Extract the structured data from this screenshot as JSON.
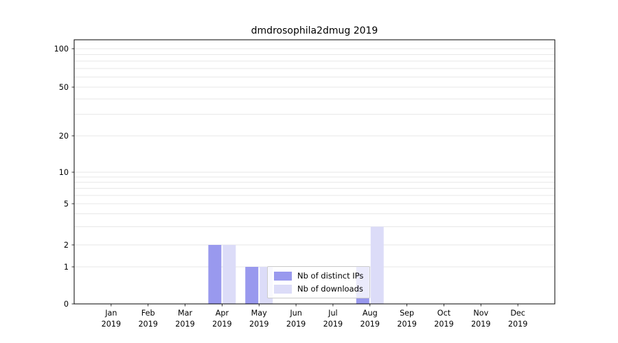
{
  "title": "dmdrosophila2dmug 2019",
  "chart_data": {
    "type": "bar",
    "title": "dmdrosophila2dmug 2019",
    "categories": [
      "Jan 2019",
      "Feb 2019",
      "Mar 2019",
      "Apr 2019",
      "May 2019",
      "Jun 2019",
      "Jul 2019",
      "Aug 2019",
      "Sep 2019",
      "Oct 2019",
      "Nov 2019",
      "Dec 2019"
    ],
    "series": [
      {
        "name": "Nb of distinct IPs",
        "color": "#9999ee",
        "values": [
          0,
          0,
          0,
          2,
          1,
          0,
          0,
          1,
          0,
          0,
          0,
          0
        ]
      },
      {
        "name": "Nb of downloads",
        "color": "#dcdcf8",
        "values": [
          0,
          0,
          0,
          2,
          1,
          0,
          0,
          3,
          0,
          0,
          0,
          0
        ]
      }
    ],
    "yscale": "log",
    "yticks": [
      0,
      1,
      2,
      5,
      10,
      20,
      50,
      100
    ],
    "ylim": [
      0,
      100
    ],
    "grid": "horizontal-minor",
    "legend_position": "lower center"
  }
}
